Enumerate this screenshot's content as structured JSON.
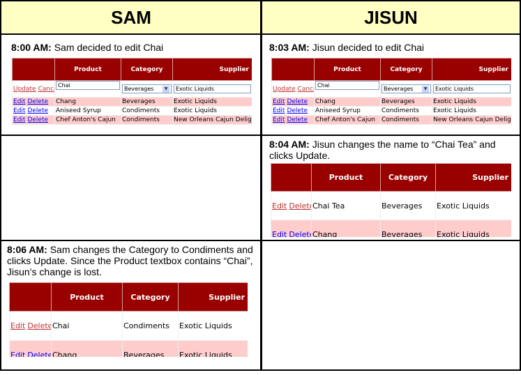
{
  "headers": {
    "sam": "SAM",
    "jisun": "JISUN"
  },
  "panels": [
    {
      "id": "p1",
      "time": "8:00 AM:",
      "text": " Sam decided to edit Chai",
      "columns": [
        "",
        "Product",
        "Category",
        "Supplier"
      ],
      "edit_row": {
        "links": [
          "Update",
          "Cancel"
        ],
        "product": "Chai",
        "category": "Beverages",
        "supplier": "Exotic Liquids"
      },
      "rows": [
        [
          "Chang",
          "Beverages",
          "Exotic Liquids"
        ],
        [
          "Aniseed Syrup",
          "Condiments",
          "Exotic Liquids"
        ],
        [
          "Chef Anton's Cajun",
          "Condiments",
          "New Orleans Cajun Delights"
        ]
      ],
      "links": [
        "Edit",
        "Delete"
      ]
    },
    {
      "id": "p2",
      "time": "8:03 AM:",
      "text": " Jisun decided to edit Chai",
      "columns": [
        "",
        "Product",
        "Category",
        "Supplier"
      ],
      "edit_row": {
        "links": [
          "Update",
          "Cancel"
        ],
        "product": "Chai",
        "category": "Beverages",
        "supplier": "Exotic Liquids"
      },
      "rows": [
        [
          "Chang",
          "Beverages",
          "Exotic Liquids"
        ],
        [
          "Aniseed Syrup",
          "Condiments",
          "Exotic Liquids"
        ],
        [
          "Chef Anton's Cajun",
          "Condiments",
          "New Orleans Cajun Delights"
        ]
      ],
      "links": [
        "Edit",
        "Delete"
      ]
    },
    {
      "id": "p3",
      "time": "8:04 AM:",
      "text": " Jisun changes the name to “Chai Tea” and clicks Update.",
      "columns": [
        "",
        "Product",
        "Category",
        "Supplier"
      ],
      "rows": [
        [
          "Chai Tea",
          "Beverages",
          "Exotic Liquids"
        ],
        [
          "Chang",
          "Beverages",
          "Exotic Liquids"
        ]
      ],
      "links": [
        "Edit",
        "Delete"
      ]
    },
    {
      "id": "p4",
      "time": "8:06 AM:",
      "text": " Sam changes the Category to Condiments and clicks Update. Since the Product textbox contains “Chai”, Jisun’s change is lost.",
      "columns": [
        "",
        "Product",
        "Category",
        "Supplier"
      ],
      "rows": [
        [
          "Chai",
          "Condiments",
          "Exotic Liquids"
        ],
        [
          "Chang",
          "Beverages",
          "Exotic Liquids"
        ]
      ],
      "links": [
        "Edit",
        "Delete"
      ]
    }
  ]
}
